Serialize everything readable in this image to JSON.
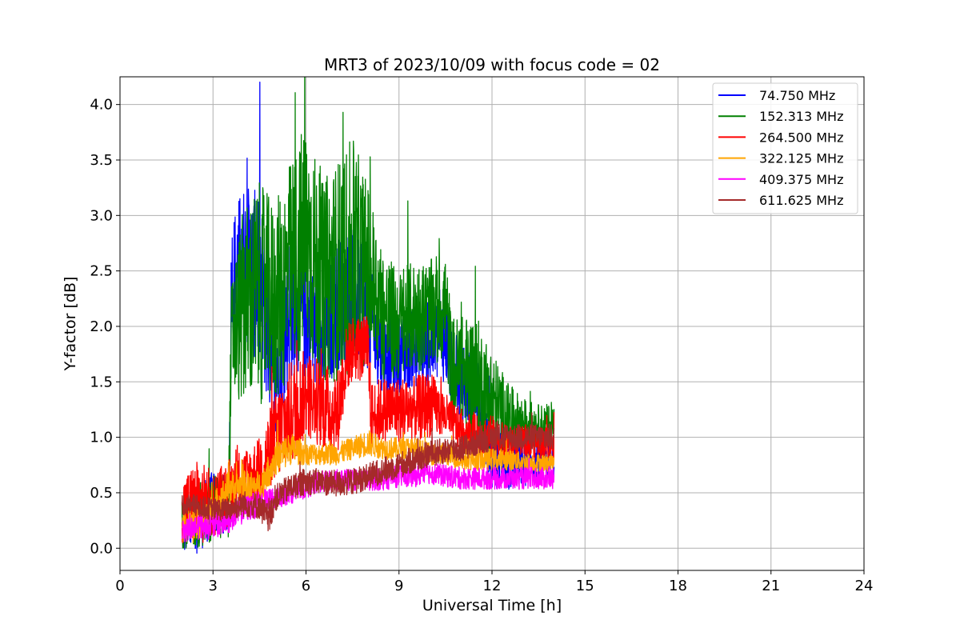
{
  "chart_data": {
    "type": "line",
    "title": "MRT3 of 2023/10/09 with focus code = 02",
    "xlabel": "Universal Time [h]",
    "ylabel": "Y-factor [dB]",
    "xlim": [
      0,
      24
    ],
    "ylim": [
      -0.2,
      4.25
    ],
    "xticks": [
      0,
      3,
      6,
      9,
      12,
      15,
      18,
      21,
      24
    ],
    "yticks": [
      0.0,
      0.5,
      1.0,
      1.5,
      2.0,
      2.5,
      3.0,
      3.5,
      4.0
    ],
    "xtick_labels": [
      "0",
      "3",
      "6",
      "9",
      "12",
      "15",
      "18",
      "21",
      "24"
    ],
    "ytick_labels": [
      "0.0",
      "0.5",
      "1.0",
      "1.5",
      "2.0",
      "2.5",
      "3.0",
      "3.5",
      "4.0"
    ],
    "grid": true,
    "legend_position": "top-right",
    "series": [
      {
        "name": " 74.750 MHz",
        "color": "#0000ff",
        "x": [
          2.0,
          2.5,
          3.0,
          3.5,
          3.6,
          4.0,
          4.5,
          5.0,
          5.5,
          6.0,
          6.5,
          7.0,
          7.5,
          8.0,
          8.5,
          9.0,
          9.5,
          10.0,
          10.5,
          10.7,
          11.0,
          11.5,
          12.0,
          12.5,
          13.0,
          13.5,
          14.0
        ],
        "values": [
          0.1,
          0.25,
          0.4,
          0.4,
          2.4,
          2.6,
          2.4,
          1.6,
          2.2,
          2.1,
          1.8,
          2.2,
          2.3,
          2.1,
          1.75,
          1.75,
          1.8,
          1.85,
          1.9,
          1.6,
          1.5,
          1.4,
          0.8,
          0.75,
          0.75,
          0.75,
          0.8
        ],
        "spread": [
          0.15,
          0.3,
          0.3,
          0.25,
          0.6,
          0.7,
          0.8,
          0.6,
          0.7,
          0.6,
          0.5,
          0.6,
          0.6,
          0.5,
          0.35,
          0.35,
          0.35,
          0.4,
          0.4,
          0.35,
          0.35,
          0.35,
          0.3,
          0.25,
          0.2,
          0.15,
          0.15
        ]
      },
      {
        "name": "152.313 MHz",
        "color": "#008000",
        "x": [
          2.0,
          2.5,
          3.0,
          3.5,
          3.6,
          4.0,
          4.5,
          5.0,
          5.5,
          6.0,
          6.5,
          7.0,
          7.5,
          8.0,
          8.5,
          9.0,
          9.5,
          10.0,
          10.5,
          10.7,
          11.0,
          11.5,
          12.0,
          12.5,
          13.0,
          13.5,
          14.0
        ],
        "values": [
          0.15,
          0.3,
          0.35,
          0.4,
          1.9,
          2.2,
          2.3,
          2.2,
          2.5,
          2.8,
          2.4,
          2.5,
          2.6,
          2.5,
          2.1,
          2.0,
          2.1,
          2.1,
          2.2,
          1.6,
          1.6,
          1.5,
          1.3,
          1.2,
          1.15,
          1.1,
          1.1
        ],
        "spread": [
          0.15,
          0.3,
          0.3,
          0.3,
          0.6,
          0.9,
          1.0,
          0.9,
          1.0,
          1.1,
          0.9,
          1.0,
          1.1,
          0.8,
          0.6,
          0.5,
          0.5,
          0.5,
          0.5,
          0.5,
          0.5,
          0.6,
          0.5,
          0.3,
          0.2,
          0.2,
          0.2
        ]
      },
      {
        "name": "264.500 MHz",
        "color": "#ff0000",
        "x": [
          2.0,
          2.5,
          3.0,
          3.5,
          4.0,
          4.5,
          5.0,
          5.5,
          6.0,
          6.5,
          7.0,
          7.3,
          7.5,
          8.0,
          8.1,
          8.5,
          9.0,
          9.5,
          10.0,
          10.5,
          11.0,
          11.5,
          12.0,
          12.5,
          13.0,
          13.5,
          14.0
        ],
        "values": [
          0.35,
          0.4,
          0.4,
          0.5,
          0.6,
          0.7,
          1.0,
          1.2,
          1.4,
          1.3,
          1.2,
          1.7,
          1.8,
          1.8,
          1.2,
          1.25,
          1.25,
          1.25,
          1.3,
          1.2,
          1.05,
          1.0,
          1.0,
          0.95,
          0.95,
          0.95,
          0.95
        ],
        "spread": [
          0.3,
          0.4,
          0.3,
          0.3,
          0.3,
          0.3,
          0.4,
          0.5,
          0.4,
          0.4,
          0.4,
          0.3,
          0.3,
          0.3,
          0.3,
          0.3,
          0.3,
          0.3,
          0.3,
          0.2,
          0.2,
          0.2,
          0.2,
          0.15,
          0.15,
          0.15,
          0.15
        ]
      },
      {
        "name": "322.125 MHz",
        "color": "#ffa500",
        "x": [
          2.0,
          2.5,
          3.0,
          3.5,
          4.0,
          4.5,
          5.0,
          5.5,
          6.0,
          6.5,
          7.0,
          7.5,
          8.0,
          8.5,
          9.0,
          9.5,
          10.0,
          10.5,
          11.0,
          11.5,
          12.0,
          12.5,
          13.0,
          13.5,
          14.0
        ],
        "values": [
          0.2,
          0.2,
          0.35,
          0.55,
          0.55,
          0.55,
          0.8,
          0.9,
          0.85,
          0.85,
          0.85,
          0.9,
          0.95,
          0.9,
          0.9,
          0.9,
          0.85,
          0.85,
          0.8,
          0.8,
          0.8,
          0.8,
          0.78,
          0.77,
          0.77
        ],
        "spread": [
          0.15,
          0.15,
          0.15,
          0.15,
          0.15,
          0.15,
          0.15,
          0.15,
          0.1,
          0.1,
          0.1,
          0.1,
          0.12,
          0.1,
          0.1,
          0.1,
          0.1,
          0.1,
          0.1,
          0.1,
          0.1,
          0.1,
          0.08,
          0.08,
          0.08
        ]
      },
      {
        "name": "409.375 MHz",
        "color": "#ff00ff",
        "x": [
          2.0,
          2.5,
          3.0,
          3.5,
          4.0,
          4.5,
          5.0,
          5.5,
          6.0,
          6.5,
          7.0,
          7.5,
          8.0,
          8.5,
          9.0,
          9.5,
          10.0,
          10.5,
          11.0,
          11.5,
          12.0,
          12.5,
          13.0,
          13.5,
          14.0
        ],
        "values": [
          0.15,
          0.2,
          0.2,
          0.25,
          0.35,
          0.4,
          0.45,
          0.5,
          0.55,
          0.6,
          0.6,
          0.62,
          0.62,
          0.62,
          0.65,
          0.65,
          0.68,
          0.65,
          0.63,
          0.63,
          0.63,
          0.63,
          0.63,
          0.63,
          0.63
        ],
        "spread": [
          0.1,
          0.12,
          0.12,
          0.12,
          0.12,
          0.12,
          0.1,
          0.1,
          0.1,
          0.1,
          0.1,
          0.1,
          0.1,
          0.1,
          0.1,
          0.1,
          0.1,
          0.1,
          0.1,
          0.1,
          0.1,
          0.1,
          0.1,
          0.1,
          0.1
        ]
      },
      {
        "name": "611.625 MHz",
        "color": "#a52a2a",
        "x": [
          2.0,
          2.5,
          3.0,
          3.5,
          4.0,
          4.5,
          4.8,
          5.0,
          5.5,
          6.0,
          6.5,
          7.0,
          7.5,
          8.0,
          8.5,
          9.0,
          9.5,
          10.0,
          10.5,
          11.0,
          11.5,
          12.0,
          12.5,
          13.0,
          13.5,
          14.0
        ],
        "values": [
          0.4,
          0.38,
          0.35,
          0.35,
          0.4,
          0.38,
          0.25,
          0.45,
          0.55,
          0.6,
          0.6,
          0.58,
          0.6,
          0.65,
          0.7,
          0.75,
          0.8,
          0.85,
          0.88,
          0.9,
          0.95,
          1.0,
          1.0,
          1.0,
          1.0,
          1.0
        ],
        "spread": [
          0.1,
          0.1,
          0.1,
          0.1,
          0.12,
          0.12,
          0.15,
          0.12,
          0.12,
          0.12,
          0.12,
          0.12,
          0.12,
          0.12,
          0.12,
          0.12,
          0.12,
          0.12,
          0.12,
          0.12,
          0.12,
          0.12,
          0.12,
          0.12,
          0.12,
          0.12
        ]
      }
    ]
  }
}
